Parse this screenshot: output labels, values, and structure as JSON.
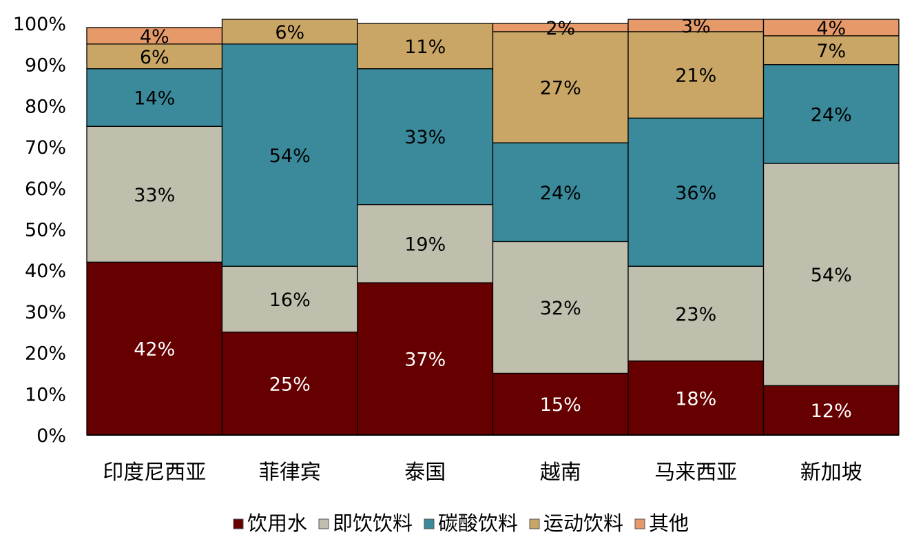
{
  "chart_data": {
    "type": "bar",
    "stacked": true,
    "categories": [
      "印度尼西亚",
      "菲律宾",
      "泰国",
      "越南",
      "马来西亚",
      "新加坡"
    ],
    "series": [
      {
        "name": "饮用水",
        "values": [
          42,
          25,
          37,
          15,
          18,
          12
        ],
        "color": "#660000",
        "label_color": "#ffffff"
      },
      {
        "name": "即饮饮料",
        "values": [
          33,
          16,
          19,
          32,
          23,
          54
        ],
        "color": "#c0bfae",
        "label_color": "#000000"
      },
      {
        "name": "碳酸饮料",
        "values": [
          14,
          54,
          33,
          24,
          36,
          24
        ],
        "color": "#3a8a9c",
        "label_color": "#000000"
      },
      {
        "name": "运动饮料",
        "values": [
          6,
          6,
          11,
          27,
          21,
          7
        ],
        "color": "#c9a665",
        "label_color": "#000000"
      },
      {
        "name": "其他",
        "values": [
          4,
          0,
          0,
          2,
          3,
          4
        ],
        "color": "#e69a6a",
        "label_color": "#000000"
      }
    ],
    "data_labels": [
      [
        "42%",
        "25%",
        "37%",
        "15%",
        "18%",
        "12%"
      ],
      [
        "33%",
        "16%",
        "19%",
        "32%",
        "23%",
        "54%"
      ],
      [
        "14%",
        "54%",
        "33%",
        "24%",
        "36%",
        "24%"
      ],
      [
        "6%",
        "6%",
        "11%",
        "27%",
        "21%",
        "7%"
      ],
      [
        "4%",
        "",
        "",
        "2%",
        "3%",
        "4%"
      ]
    ],
    "ylim": [
      0,
      100
    ],
    "yticks": [
      "0%",
      "10%",
      "20%",
      "30%",
      "40%",
      "50%",
      "60%",
      "70%",
      "80%",
      "90%",
      "100%"
    ],
    "legend_position": "bottom",
    "grid": false
  }
}
